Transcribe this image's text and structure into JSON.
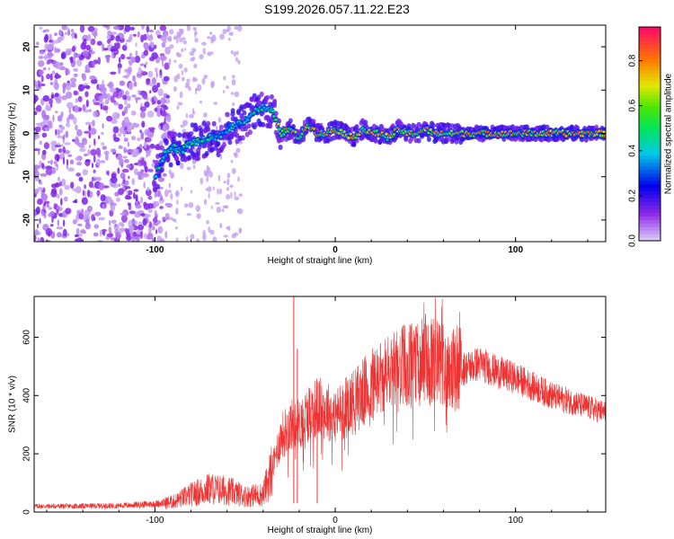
{
  "title": "S199.2026.057.11.22.E23",
  "chart_data": [
    {
      "type": "heatmap",
      "xlabel": "Height of straight line (km)",
      "ylabel": "Frequency (Hz)",
      "xlim": [
        -167,
        150
      ],
      "ylim": [
        -25,
        25
      ],
      "xticks": [
        -100,
        0,
        100
      ],
      "yticks": [
        -20,
        -10,
        0,
        10,
        20
      ],
      "ridge": {
        "x": [
          -100,
          -95,
          -90,
          -85,
          -80,
          -75,
          -70,
          -65,
          -60,
          -55,
          -50,
          -45,
          -40,
          -35,
          -30,
          -25,
          -20,
          -15,
          -10,
          -5,
          0,
          5,
          10,
          15,
          20,
          25,
          30,
          35,
          40,
          45,
          50,
          55,
          60,
          65,
          70,
          80,
          90,
          100,
          110,
          120,
          130,
          140,
          150
        ],
        "y": [
          -10,
          -5,
          -3,
          -4,
          -2,
          -2,
          -1,
          -1,
          1,
          2,
          3,
          5,
          6,
          5,
          0,
          1,
          -1,
          2,
          0,
          0,
          1,
          0,
          -1,
          1,
          0,
          0,
          -1,
          1,
          0,
          0,
          1,
          0,
          0,
          0,
          0,
          0,
          0,
          0,
          0,
          0,
          0,
          0,
          0
        ]
      },
      "colorbar": {
        "label": "Normalized spectral amplitude",
        "range": [
          0,
          0.95
        ],
        "ticks": [
          0,
          0.2,
          0.4,
          0.6,
          0.8
        ],
        "tick_labels": [
          "0.0",
          "0.2",
          "0.4",
          "0.6",
          "0.8"
        ]
      }
    },
    {
      "type": "line",
      "xlabel": "Height of straight line (km)",
      "ylabel": "SNR (10 * v/v)",
      "xlim": [
        -167,
        150
      ],
      "ylim": [
        0,
        740
      ],
      "xticks": [
        -100,
        0,
        100
      ],
      "yticks": [
        0,
        200,
        400,
        600
      ],
      "color": "#ee3333",
      "trend": {
        "x": [
          -167,
          -150,
          -120,
          -100,
          -90,
          -80,
          -70,
          -60,
          -50,
          -40,
          -35,
          -30,
          -25,
          -20,
          -15,
          -10,
          -5,
          0,
          10,
          20,
          30,
          40,
          50,
          60,
          70,
          80,
          90,
          100,
          110,
          120,
          130,
          140,
          150
        ],
        "y": [
          20,
          20,
          22,
          28,
          35,
          60,
          80,
          75,
          55,
          60,
          150,
          260,
          300,
          300,
          340,
          360,
          350,
          330,
          380,
          430,
          470,
          500,
          510,
          510,
          490,
          510,
          480,
          460,
          430,
          400,
          380,
          360,
          340
        ]
      },
      "spikes": [
        {
          "x": -23,
          "y": 740
        },
        {
          "x": -21,
          "y": 560
        },
        {
          "x": -10,
          "y": 300
        }
      ]
    }
  ]
}
